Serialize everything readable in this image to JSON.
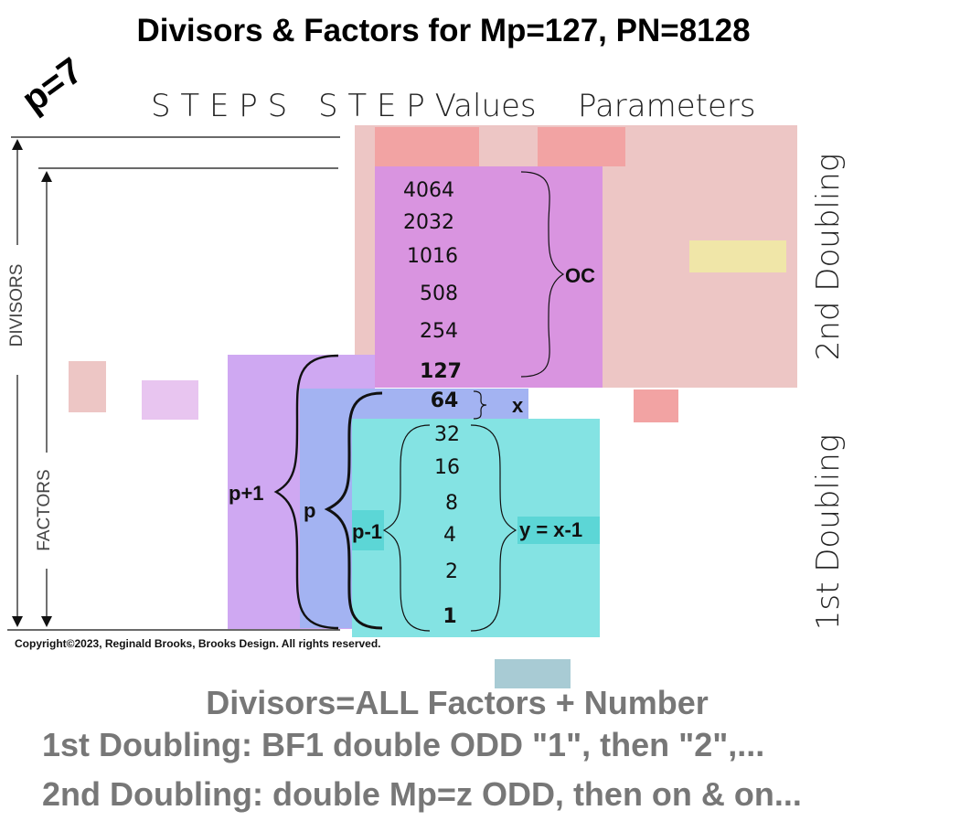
{
  "title": "Divisors & Factors for Mp=127, PN=8128",
  "p_label": "p=7",
  "headers": {
    "steps": "S T E P S",
    "step_values": "S T E P  Values",
    "parameters": "Parameters"
  },
  "axis": {
    "divisors": "DIVISORS",
    "factors": "FACTORS"
  },
  "upper_values": [
    "4064",
    "2032",
    "1016",
    "508",
    "254",
    "127"
  ],
  "x_value": "64",
  "lower_values": [
    "32",
    "16",
    "8",
    "4",
    "2",
    "1"
  ],
  "brace_labels": {
    "oc": "OC",
    "x": "x",
    "y": "y = x-1",
    "p_plus_1": "p+1",
    "p": "p",
    "p_minus_1": "p-1"
  },
  "doubling": {
    "second": "2nd Doubling",
    "first": "1st Doubling"
  },
  "copyright": "Copyright©2023, Reginald Brooks, Brooks Design. All rights reserved.",
  "footer_lines": [
    "Divisors=ALL Factors + Number",
    "1st Doubling: BF1 double ODD \"1\", then \"2\",...",
    "2nd Doubling: double Mp=z ODD, then on & on..."
  ],
  "colors": {
    "pink": "#edc6c5",
    "salmon": "#f2a3a3",
    "magenta": "#d994e0",
    "lavender": "#cfa8f2",
    "periwinkle": "#a3b3f2",
    "cyan": "#84e3e3",
    "yellow": "#f0e6a8",
    "steelblue": "#a8cbd4",
    "teal_label": "#5cd6d6"
  }
}
